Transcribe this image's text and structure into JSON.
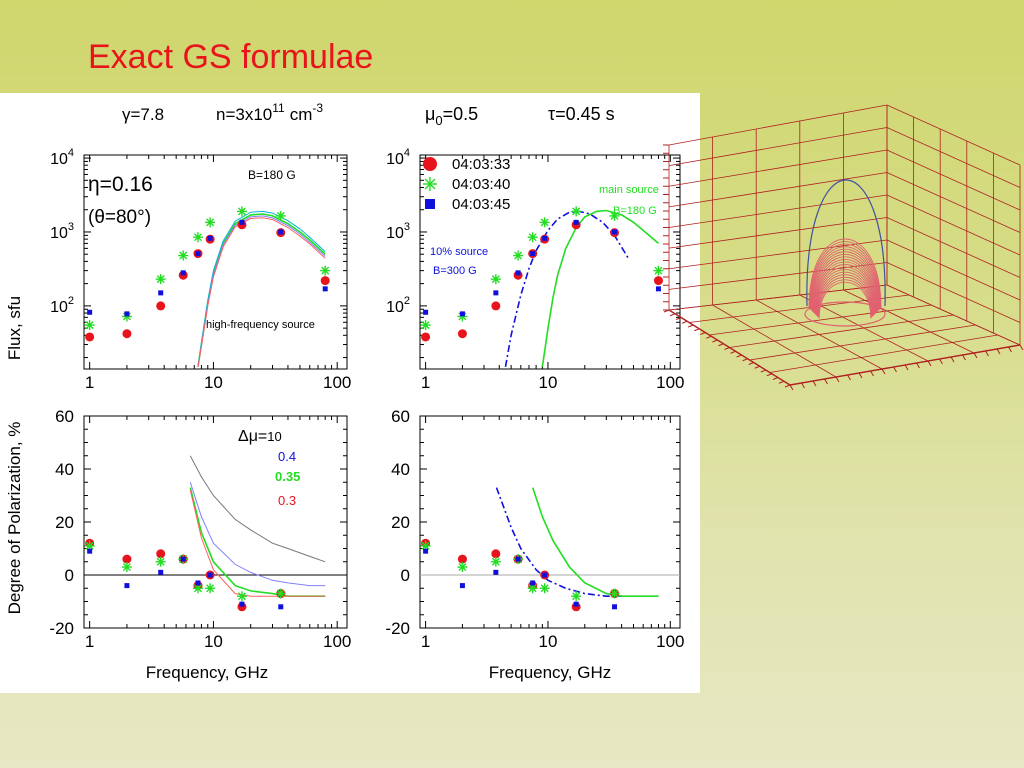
{
  "slide": {
    "title": "Exact GS formulae"
  },
  "params": {
    "gamma": "γ=7.8",
    "n": "n=3x10",
    "n_exp": "11",
    "n_unit": "cm",
    "n_unit_exp": "-3",
    "mu0": "μ",
    "mu0_sub": "0",
    "mu0_val": "=0.5",
    "tau": "τ=0.45 s"
  },
  "axes": {
    "flux_ylabel": "Flux, sfu",
    "pol_ylabel": "Degree of Polarization, %",
    "xlabel": "Frequency, GHz"
  },
  "annotations": {
    "eta": "η=0.16",
    "theta": "(θ=80°)",
    "b180": "B=180 G",
    "hf_source": "high-frequency source",
    "main_source": "main source",
    "main_b": "B=180 G",
    "ten_source": "10% source",
    "ten_b": "B=300 G",
    "dmu_label": "Δμ=",
    "dmu_10": "10",
    "dmu_04": "0.4",
    "dmu_035": "0.35",
    "dmu_03": "0.3"
  },
  "legend": [
    {
      "label": "04:03:33",
      "marker": "circle",
      "color": "#e8141c"
    },
    {
      "label": "04:03:40",
      "marker": "star",
      "color": "#22dd22"
    },
    {
      "label": "04:03:45",
      "marker": "square",
      "color": "#1010dd"
    }
  ],
  "colors": {
    "red": "#e8141c",
    "green": "#22dd22",
    "blue": "#1010dd",
    "gray": "#777777",
    "loop": "#e06070",
    "grid": "#b02020"
  },
  "chart_data": [
    {
      "type": "scatter",
      "panel": "flux-left",
      "xscale": "log",
      "yscale": "log",
      "xlim": [
        0.9,
        120
      ],
      "ylim": [
        14,
        11000
      ],
      "xticks": [
        {
          "v": 1,
          "label": "1"
        },
        {
          "v": 10,
          "label": "10"
        },
        {
          "v": 100,
          "label": "100"
        }
      ],
      "yticks": [
        {
          "v": 100,
          "label": "10",
          "exp": "2"
        },
        {
          "v": 1000,
          "label": "10",
          "exp": "3"
        },
        {
          "v": 10000,
          "label": "10",
          "exp": "4"
        }
      ],
      "xlabel": "",
      "ylabel": "Flux, sfu",
      "series": [
        {
          "name": "04:03:33",
          "marker": "circle",
          "x": [
            1,
            2,
            3.75,
            5.7,
            7.5,
            9.4,
            17,
            35,
            80
          ],
          "y": [
            38,
            42,
            100,
            260,
            510,
            800,
            1250,
            980,
            220
          ]
        },
        {
          "name": "04:03:40",
          "marker": "star",
          "x": [
            1,
            2,
            3.75,
            5.7,
            7.5,
            9.4,
            17,
            35,
            80
          ],
          "y": [
            55,
            72,
            230,
            480,
            850,
            1350,
            1900,
            1650,
            300
          ]
        },
        {
          "name": "04:03:45",
          "marker": "square",
          "x": [
            1,
            2,
            3.75,
            5.7,
            7.5,
            9.4,
            17,
            35,
            80
          ],
          "y": [
            82,
            78,
            150,
            280,
            510,
            820,
            1350,
            1000,
            170
          ]
        }
      ],
      "curves": [
        {
          "color": "#22dd22",
          "x": [
            7.5,
            8,
            9,
            10,
            12,
            15,
            20,
            25,
            30,
            40,
            50,
            60,
            80
          ],
          "y": [
            15,
            30,
            110,
            270,
            700,
            1300,
            1700,
            1750,
            1650,
            1300,
            1000,
            780,
            500
          ]
        },
        {
          "color": "#00b8d8",
          "x": [
            7.5,
            8,
            9,
            10,
            12,
            15,
            20,
            25,
            30,
            40,
            50,
            60,
            80
          ],
          "y": [
            15,
            32,
            120,
            300,
            760,
            1400,
            1850,
            1900,
            1800,
            1420,
            1100,
            850,
            540
          ]
        },
        {
          "color": "#8080ff",
          "x": [
            7.5,
            8,
            9,
            10,
            12,
            15,
            20,
            25,
            30,
            40,
            50,
            60,
            80
          ],
          "y": [
            15,
            29,
            105,
            260,
            670,
            1230,
            1600,
            1650,
            1550,
            1220,
            940,
            730,
            470
          ]
        },
        {
          "color": "#ff6060",
          "x": [
            7.5,
            8,
            9,
            10,
            12,
            15,
            20,
            25,
            30,
            40,
            50,
            60,
            80
          ],
          "y": [
            15,
            28,
            100,
            245,
            630,
            1170,
            1520,
            1560,
            1470,
            1150,
            880,
            690,
            440
          ]
        }
      ]
    },
    {
      "type": "scatter",
      "panel": "flux-right",
      "xscale": "log",
      "yscale": "log",
      "xlim": [
        0.9,
        120
      ],
      "ylim": [
        14,
        11000
      ],
      "xticks": [
        {
          "v": 1,
          "label": "1"
        },
        {
          "v": 10,
          "label": "10"
        },
        {
          "v": 100,
          "label": "100"
        }
      ],
      "yticks": [
        {
          "v": 100,
          "label": "10",
          "exp": "2"
        },
        {
          "v": 1000,
          "label": "10",
          "exp": "3"
        },
        {
          "v": 10000,
          "label": "10",
          "exp": "4"
        }
      ],
      "series": [
        {
          "name": "04:03:33",
          "marker": "circle",
          "x": [
            1,
            2,
            3.75,
            5.7,
            7.5,
            9.4,
            17,
            35,
            80
          ],
          "y": [
            38,
            42,
            100,
            260,
            510,
            800,
            1250,
            980,
            220
          ]
        },
        {
          "name": "04:03:40",
          "marker": "star",
          "x": [
            1,
            2,
            3.75,
            5.7,
            7.5,
            9.4,
            17,
            35,
            80
          ],
          "y": [
            55,
            72,
            230,
            480,
            850,
            1350,
            1900,
            1650,
            300
          ]
        },
        {
          "name": "04:03:45",
          "marker": "square",
          "x": [
            1,
            2,
            3.75,
            5.7,
            7.5,
            9.4,
            17,
            35,
            80
          ],
          "y": [
            82,
            78,
            150,
            280,
            510,
            820,
            1350,
            1000,
            170
          ]
        }
      ],
      "curves": [
        {
          "color": "#1010dd",
          "dash": "dashdot",
          "x": [
            4.5,
            5,
            6,
            7,
            8,
            10,
            12,
            15,
            18,
            22,
            28,
            35,
            45
          ],
          "y": [
            15,
            40,
            140,
            320,
            560,
            1050,
            1500,
            1850,
            1900,
            1750,
            1350,
            900,
            450
          ]
        },
        {
          "color": "#22dd22",
          "x": [
            9,
            10,
            11,
            12,
            14,
            17,
            20,
            25,
            30,
            40,
            50,
            60,
            80
          ],
          "y": [
            15,
            50,
            130,
            260,
            600,
            1150,
            1600,
            1900,
            1950,
            1700,
            1350,
            1050,
            700
          ]
        }
      ]
    },
    {
      "type": "scatter",
      "panel": "pol-left",
      "xscale": "log",
      "xlim": [
        0.9,
        120
      ],
      "ylim": [
        -20,
        60
      ],
      "xticks": [
        {
          "v": 1,
          "label": "1"
        },
        {
          "v": 10,
          "label": "10"
        },
        {
          "v": 100,
          "label": "100"
        }
      ],
      "yticks": [
        {
          "v": -20,
          "label": "-20"
        },
        {
          "v": 0,
          "label": "0"
        },
        {
          "v": 20,
          "label": "20"
        },
        {
          "v": 40,
          "label": "40"
        },
        {
          "v": 60,
          "label": "60"
        }
      ],
      "xlabel": "Frequency, GHz",
      "ylabel": "Degree of Polarization, %",
      "series": [
        {
          "name": "04:03:33",
          "marker": "circle",
          "x": [
            1,
            2,
            3.75,
            5.7,
            7.5,
            9.4,
            17,
            35
          ],
          "y": [
            12,
            6,
            8,
            6,
            -4,
            0,
            -12,
            -7
          ]
        },
        {
          "name": "04:03:40",
          "marker": "star",
          "x": [
            1,
            2,
            3.75,
            5.7,
            7.5,
            9.4,
            17,
            35
          ],
          "y": [
            11,
            3,
            5,
            6,
            -5,
            -5,
            -8,
            -7
          ]
        },
        {
          "name": "04:03:45",
          "marker": "square",
          "x": [
            1,
            2,
            3.75,
            5.7,
            7.5,
            9.4,
            17,
            35
          ],
          "y": [
            9,
            -4,
            1,
            6,
            -3,
            0,
            -11,
            -12
          ]
        }
      ],
      "curves": [
        {
          "color": "#777777",
          "x": [
            6.5,
            8,
            10,
            15,
            20,
            30,
            40,
            60,
            80
          ],
          "y": [
            45,
            37,
            30,
            21,
            17,
            12,
            10,
            7,
            5
          ]
        },
        {
          "color": "#8080ff",
          "x": [
            6.5,
            8,
            10,
            15,
            20,
            30,
            40,
            60,
            80
          ],
          "y": [
            35,
            22,
            12,
            4,
            1,
            -2,
            -3,
            -4,
            -4
          ]
        },
        {
          "color": "#22dd22",
          "x": [
            6.5,
            8,
            10,
            15,
            20,
            30,
            40,
            60,
            80
          ],
          "y": [
            33,
            16,
            5,
            -4,
            -6,
            -7,
            -8,
            -8,
            -8
          ]
        },
        {
          "color": "#ff6060",
          "x": [
            6.5,
            8,
            10,
            15,
            20,
            30,
            40,
            60,
            80
          ],
          "y": [
            32,
            14,
            2,
            -7,
            -8,
            -8,
            -8,
            -8,
            -8
          ]
        }
      ],
      "hline": 0
    },
    {
      "type": "scatter",
      "panel": "pol-right",
      "xscale": "log",
      "xlim": [
        0.9,
        120
      ],
      "ylim": [
        -20,
        60
      ],
      "xticks": [
        {
          "v": 1,
          "label": "1"
        },
        {
          "v": 10,
          "label": "10"
        },
        {
          "v": 100,
          "label": "100"
        }
      ],
      "yticks": [
        {
          "v": -20,
          "label": "-20"
        },
        {
          "v": 0,
          "label": "0"
        },
        {
          "v": 20,
          "label": "20"
        },
        {
          "v": 40,
          "label": "40"
        },
        {
          "v": 60,
          "label": "60"
        }
      ],
      "xlabel": "Frequency, GHz",
      "series": [
        {
          "name": "04:03:33",
          "marker": "circle",
          "x": [
            1,
            2,
            3.75,
            5.7,
            7.5,
            9.4,
            17,
            35
          ],
          "y": [
            12,
            6,
            8,
            6,
            -4,
            0,
            -12,
            -7
          ]
        },
        {
          "name": "04:03:40",
          "marker": "star",
          "x": [
            1,
            2,
            3.75,
            5.7,
            7.5,
            9.4,
            17,
            35
          ],
          "y": [
            11,
            3,
            5,
            6,
            -5,
            -5,
            -8,
            -7
          ]
        },
        {
          "name": "04:03:45",
          "marker": "square",
          "x": [
            1,
            2,
            3.75,
            5.7,
            7.5,
            9.4,
            17,
            35
          ],
          "y": [
            9,
            -4,
            1,
            6,
            -3,
            0,
            -11,
            -12
          ]
        }
      ],
      "curves": [
        {
          "color": "#1010dd",
          "dash": "dashdot",
          "x": [
            3.8,
            5,
            6,
            8,
            10,
            14,
            20,
            30,
            40
          ],
          "y": [
            33,
            18,
            10,
            2,
            -2,
            -5,
            -7,
            -8,
            -8
          ]
        },
        {
          "color": "#22dd22",
          "x": [
            7.5,
            9,
            11,
            15,
            20,
            30,
            40,
            60,
            80
          ],
          "y": [
            33,
            22,
            13,
            3,
            -3,
            -7,
            -8,
            -8,
            -8
          ]
        }
      ],
      "hline": 0
    }
  ]
}
